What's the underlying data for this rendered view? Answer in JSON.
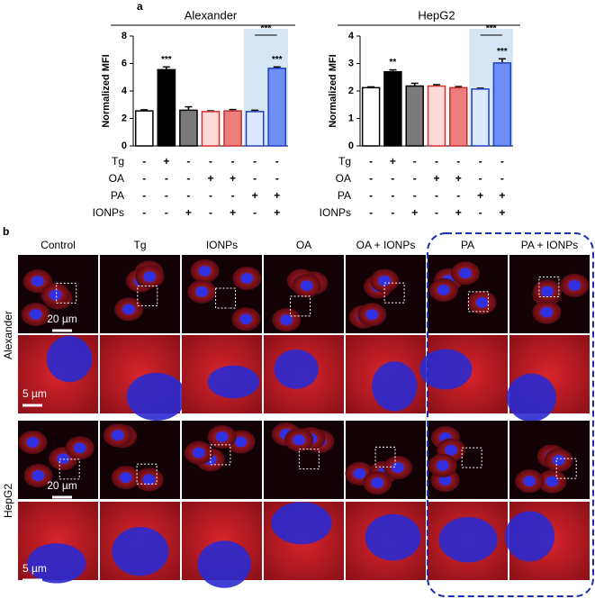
{
  "panel_labels": [
    "a",
    "b"
  ],
  "chart_data": [
    {
      "type": "bar",
      "title": "Alexander",
      "ylabel": "Normalized MFI",
      "values": [
        2.55,
        5.55,
        2.6,
        2.5,
        2.55,
        2.5,
        5.65
      ],
      "errors": [
        0.08,
        0.2,
        0.25,
        0.05,
        0.1,
        0.1,
        0.1
      ],
      "colors": [
        "#ffffff",
        "#000000",
        "#7a7a7a",
        "#fbd9d9",
        "#ee7e7e",
        "#dce8fb",
        "#6d8ef5"
      ],
      "edgecolors": [
        "#000000",
        "#000000",
        "#000000",
        "#d03030",
        "#c03030",
        "#2040c0",
        "#2040c0"
      ],
      "ylim": [
        0,
        8
      ],
      "yticks": [
        0,
        2,
        4,
        6,
        8
      ],
      "significance": [
        null,
        "***",
        null,
        null,
        null,
        null,
        "***"
      ],
      "bracket_label": "***",
      "treatments": {
        "rows": [
          "Tg",
          "OA",
          "PA",
          "IONPs"
        ],
        "signs": [
          [
            "-",
            "+",
            "-",
            "-",
            "-",
            "-",
            "-"
          ],
          [
            "-",
            "-",
            "-",
            "+",
            "+",
            "-",
            "-"
          ],
          [
            "-",
            "-",
            "-",
            "-",
            "-",
            "+",
            "+"
          ],
          [
            "-",
            "-",
            "+",
            "-",
            "+",
            "-",
            "+"
          ]
        ]
      }
    },
    {
      "type": "bar",
      "title": "HepG2",
      "ylabel": "Normalized MFI",
      "values": [
        2.12,
        2.7,
        2.18,
        2.18,
        2.12,
        2.07,
        3.02
      ],
      "errors": [
        0.03,
        0.07,
        0.1,
        0.05,
        0.04,
        0.03,
        0.15
      ],
      "colors": [
        "#ffffff",
        "#000000",
        "#7a7a7a",
        "#fbd9d9",
        "#ee7e7e",
        "#dce8fb",
        "#6d8ef5"
      ],
      "edgecolors": [
        "#000000",
        "#000000",
        "#000000",
        "#d03030",
        "#c03030",
        "#2040c0",
        "#2040c0"
      ],
      "ylim": [
        0,
        4
      ],
      "yticks": [
        0,
        1,
        2,
        3,
        4
      ],
      "significance": [
        null,
        "**",
        null,
        null,
        null,
        null,
        "***"
      ],
      "bracket_label": "***",
      "treatments": {
        "rows": [
          "Tg",
          "OA",
          "PA",
          "IONPs"
        ],
        "signs": [
          [
            "-",
            "+",
            "-",
            "-",
            "-",
            "-",
            "-"
          ],
          [
            "-",
            "-",
            "-",
            "+",
            "+",
            "-",
            "-"
          ],
          [
            "-",
            "-",
            "-",
            "-",
            "-",
            "+",
            "+"
          ],
          [
            "-",
            "-",
            "+",
            "-",
            "+",
            "-",
            "+"
          ]
        ]
      }
    }
  ],
  "micrographs": {
    "columns": [
      "Control",
      "Tg",
      "IONPs",
      "OA",
      "OA + IONPs",
      "PA",
      "PA + IONPs"
    ],
    "rows": [
      "Alexander",
      "HepG2"
    ],
    "scale_bars": [
      "20 µm",
      "5 µm"
    ]
  }
}
